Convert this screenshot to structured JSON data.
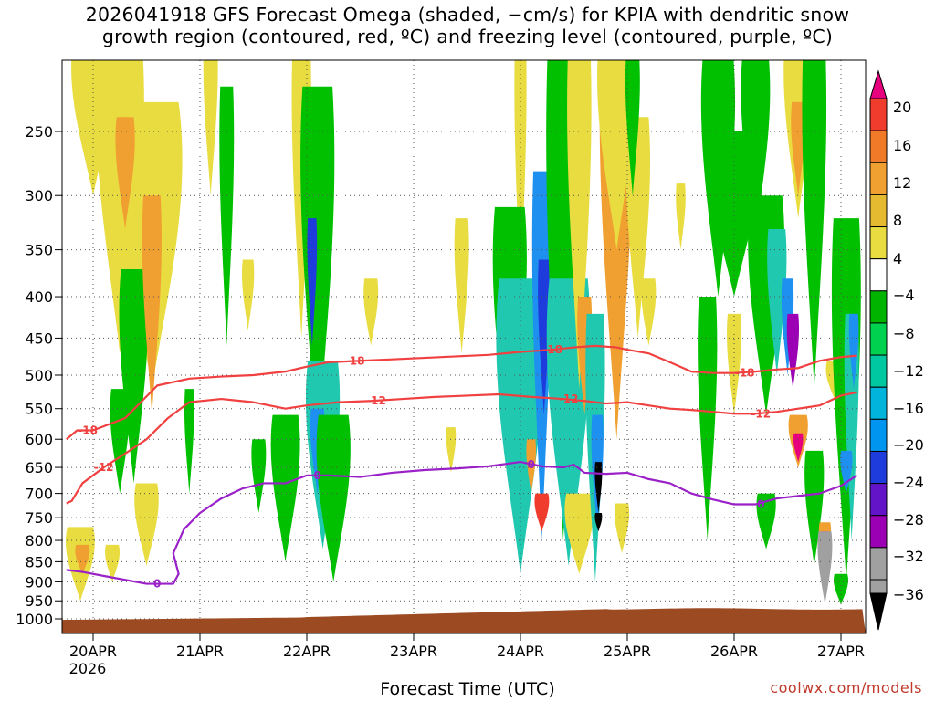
{
  "title": {
    "line1": "2026041918 GFS Forecast Omega (shaded, −cm/s) for KPIA with dendritic snow",
    "line2": "growth region (contoured, red, ºC) and freezing level (contoured, purple, ºC)"
  },
  "footer": {
    "xlabel": "Forecast Time (UTC)",
    "credit": "coolwx.com/models"
  },
  "chart_data": {
    "type": "heatmap",
    "x_ticks": [
      "20APR",
      "21APR",
      "22APR",
      "23APR",
      "24APR",
      "25APR",
      "26APR",
      "27APR"
    ],
    "x_year_label": "2026",
    "x_range": [
      -0.25,
      7.15
    ],
    "y_ticks": [
      250,
      300,
      350,
      400,
      450,
      500,
      550,
      600,
      650,
      700,
      750,
      800,
      850,
      900,
      950,
      1000
    ],
    "y_range_hPa": [
      1040,
      190
    ],
    "colorbar": {
      "labels": [
        20,
        16,
        12,
        8,
        4,
        -4,
        -8,
        -12,
        -16,
        -20,
        -24,
        -28,
        -32,
        -36
      ],
      "colors": [
        "#e6007e",
        "#f03c2d",
        "#f07a28",
        "#f0a030",
        "#e6ba30",
        "#e8dc40",
        "#ffffff",
        "#00b400",
        "#00d250",
        "#00c8a0",
        "#00b4dc",
        "#0096f0",
        "#1e3cdc",
        "#6414c8",
        "#9b00b4",
        "#a0a0a0",
        "#000000"
      ]
    },
    "contours": [
      {
        "label": "-18",
        "color": "#f04040",
        "x": [
          -0.25,
          -0.15,
          0.0,
          0.3,
          0.6,
          0.9,
          1.2,
          1.5,
          1.8,
          2.0,
          2.2,
          2.5,
          2.8,
          3.1,
          3.4,
          3.7,
          4.0,
          4.3,
          4.5,
          4.7,
          4.9,
          5.0,
          5.2,
          5.4,
          5.6,
          5.8,
          6.0,
          6.2,
          6.4,
          6.6,
          6.8,
          7.0,
          7.15
        ],
        "y": [
          600,
          585,
          585,
          565,
          515,
          505,
          502,
          500,
          495,
          488,
          482,
          480,
          478,
          476,
          474,
          472,
          468,
          465,
          462,
          460,
          462,
          465,
          470,
          482,
          495,
          497,
          497,
          495,
          492,
          490,
          480,
          475,
          473
        ]
      },
      {
        "label": "-12",
        "color": "#f04040",
        "x": [
          -0.25,
          -0.2,
          -0.1,
          0.1,
          0.3,
          0.5,
          0.7,
          0.9,
          1.2,
          1.5,
          1.8,
          2.0,
          2.3,
          2.6,
          2.9,
          3.2,
          3.5,
          3.8,
          4.1,
          4.4,
          4.6,
          4.8,
          5.0,
          5.2,
          5.4,
          5.6,
          5.8,
          6.0,
          6.2,
          6.4,
          6.6,
          6.8,
          7.0,
          7.15
        ],
        "y": [
          720,
          715,
          680,
          650,
          625,
          600,
          565,
          540,
          535,
          540,
          550,
          545,
          540,
          538,
          535,
          532,
          530,
          528,
          532,
          535,
          538,
          542,
          540,
          545,
          550,
          552,
          555,
          558,
          558,
          555,
          550,
          545,
          530,
          525
        ]
      },
      {
        "label": "0",
        "color": "#9a20c8",
        "x": [
          -0.25,
          -0.1,
          0.2,
          0.5,
          0.75,
          0.8,
          0.75,
          0.85,
          1.0,
          1.2,
          1.4,
          1.6,
          1.8,
          2.0,
          2.2,
          2.5,
          2.8,
          3.1,
          3.4,
          3.7,
          4.0,
          4.2,
          4.4,
          4.5,
          4.6,
          4.8,
          5.0,
          5.2,
          5.4,
          5.6,
          5.8,
          6.0,
          6.2,
          6.4,
          6.6,
          6.8,
          7.0,
          7.15
        ],
        "y": [
          870,
          875,
          890,
          905,
          905,
          880,
          830,
          775,
          740,
          710,
          690,
          680,
          680,
          665,
          665,
          668,
          660,
          655,
          652,
          648,
          640,
          648,
          650,
          645,
          660,
          662,
          660,
          672,
          680,
          700,
          712,
          722,
          722,
          710,
          705,
          700,
          685,
          665
        ]
      }
    ]
  }
}
